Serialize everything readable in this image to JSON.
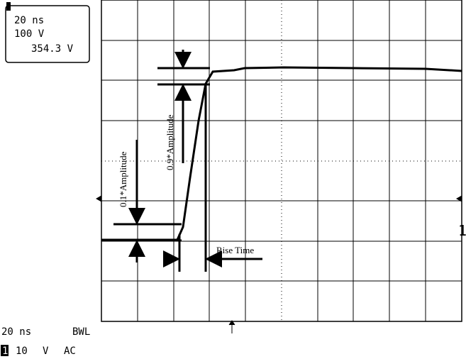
{
  "readout": {
    "timebase": "20 ns",
    "volts": "100 V",
    "measurement": "354.3 V"
  },
  "annotations": {
    "low": "0.1*Amplitude",
    "high": "0.9*Amplitude",
    "rise": "Rise Time"
  },
  "marker": "1",
  "status": {
    "timebase": "20 ns",
    "bandwidth": "BWL",
    "channel": "1",
    "scale": "10",
    "unit": "V",
    "coupling": "AC"
  }
}
